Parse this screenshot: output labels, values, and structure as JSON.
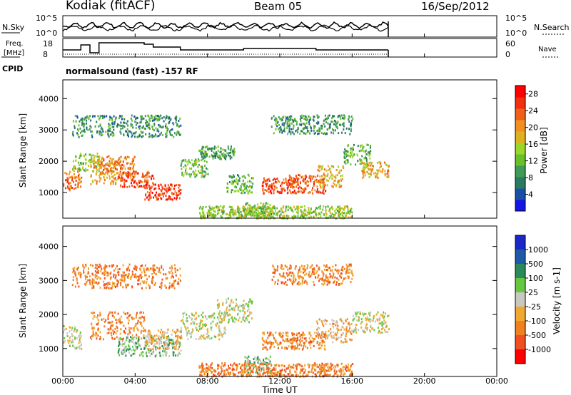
{
  "header": {
    "station": "Kodiak (fitACF)",
    "beam": "Beam 05",
    "date": "16/Sep/2012"
  },
  "left_labels": {
    "nsky": "N.Sky",
    "nsky_ticks": [
      "10^5",
      "10^0"
    ],
    "freq_line1": "Freq.",
    "freq_line2": "[MHz]",
    "freq_ticks": [
      "18",
      "8"
    ],
    "cpid": "CPID"
  },
  "right_labels": {
    "nsearch": "N.Search",
    "nsearch_ticks": [
      "10^5",
      "10^0"
    ],
    "nave": "Nave",
    "nave_ticks": [
      "60",
      "0"
    ]
  },
  "cpid_text": "normalsound (fast) -157 RF",
  "xaxis": {
    "label": "Time UT",
    "ticks": [
      "00:00",
      "04:00",
      "08:00",
      "12:00",
      "16:00",
      "20:00",
      "00:00"
    ]
  },
  "chart_data": [
    {
      "type": "heatmap",
      "name": "power",
      "ylabel": "Slant Range [km]",
      "yticks": [
        "1000",
        "2000",
        "3000",
        "4000"
      ],
      "ylim": [
        180,
        4600
      ],
      "xlim_hours": [
        0,
        24
      ],
      "data_end_hour": 18,
      "colorbar": {
        "label": "Power [dB]",
        "ticks": [
          "4",
          "8",
          "12",
          "16",
          "20",
          "24",
          "28"
        ],
        "range": [
          0,
          30
        ],
        "colors": [
          "#1515e6",
          "#1a4fa8",
          "#2a7a60",
          "#3f9a55",
          "#69c02a",
          "#9bd62a",
          "#e0b020",
          "#f09020",
          "#f06018",
          "#f03010",
          "#ff0000"
        ]
      },
      "echo_regions": [
        {
          "t": [
            0.0,
            1.0
          ],
          "r": [
            1100,
            1700
          ],
          "v": 23
        },
        {
          "t": [
            0.5,
            2.0
          ],
          "r": [
            1700,
            2300
          ],
          "v": 14
        },
        {
          "t": [
            1.5,
            3.0
          ],
          "r": [
            1300,
            2100
          ],
          "v": 20
        },
        {
          "t": [
            2.0,
            4.0
          ],
          "r": [
            1500,
            2200
          ],
          "v": 22
        },
        {
          "t": [
            3.0,
            5.0
          ],
          "r": [
            1200,
            1700
          ],
          "v": 25
        },
        {
          "t": [
            4.5,
            6.5
          ],
          "r": [
            800,
            1300
          ],
          "v": 27
        },
        {
          "t": [
            0.5,
            6.5
          ],
          "r": [
            2800,
            3500
          ],
          "v": 8
        },
        {
          "t": [
            6.5,
            8.0
          ],
          "r": [
            1500,
            2100
          ],
          "v": 12
        },
        {
          "t": [
            7.5,
            9.5
          ],
          "r": [
            2100,
            2500
          ],
          "v": 9
        },
        {
          "t": [
            9.0,
            10.5
          ],
          "r": [
            1000,
            1600
          ],
          "v": 11
        },
        {
          "t": [
            10.0,
            11.5
          ],
          "r": [
            300,
            700
          ],
          "v": 12
        },
        {
          "t": [
            11.0,
            13.0
          ],
          "r": [
            1000,
            1500
          ],
          "v": 26
        },
        {
          "t": [
            12.5,
            14.5
          ],
          "r": [
            1000,
            1600
          ],
          "v": 24
        },
        {
          "t": [
            14.0,
            15.5
          ],
          "r": [
            1200,
            1900
          ],
          "v": 18
        },
        {
          "t": [
            15.5,
            17.0
          ],
          "r": [
            1900,
            2600
          ],
          "v": 11
        },
        {
          "t": [
            16.5,
            18.0
          ],
          "r": [
            1500,
            2000
          ],
          "v": 20
        },
        {
          "t": [
            7.5,
            16.0
          ],
          "r": [
            200,
            600
          ],
          "v": 14
        },
        {
          "t": [
            11.5,
            16.0
          ],
          "r": [
            2900,
            3500
          ],
          "v": 8
        }
      ]
    },
    {
      "type": "heatmap",
      "name": "velocity",
      "ylabel": "Slant Range [km]",
      "yticks": [
        "1000",
        "2000",
        "3000",
        "4000"
      ],
      "ylim": [
        180,
        4600
      ],
      "xlim_hours": [
        0,
        24
      ],
      "data_end_hour": 18,
      "colorbar": {
        "label": "Velocity [m s-1]",
        "ticks": [
          "1000",
          "500",
          "100",
          "25",
          "-25",
          "-100",
          "-500",
          "-1000"
        ],
        "colors": [
          "#1a28c8",
          "#1e5aa8",
          "#2a8a5a",
          "#66c840",
          "#c8c8c0",
          "#f0a830",
          "#f08020",
          "#f05020",
          "#ff0000"
        ]
      },
      "echo_regions": [
        {
          "t": [
            0.0,
            1.0
          ],
          "r": [
            1000,
            1700
          ],
          "c": 4
        },
        {
          "t": [
            1.5,
            4.5
          ],
          "r": [
            1300,
            2100
          ],
          "c": 6
        },
        {
          "t": [
            3.0,
            6.5
          ],
          "r": [
            800,
            1400
          ],
          "c": 3
        },
        {
          "t": [
            4.5,
            6.5
          ],
          "r": [
            1000,
            1600
          ],
          "c": 5
        },
        {
          "t": [
            0.5,
            6.5
          ],
          "r": [
            2800,
            3500
          ],
          "c": 6
        },
        {
          "t": [
            6.5,
            9.0
          ],
          "r": [
            1300,
            2100
          ],
          "c": 4
        },
        {
          "t": [
            8.5,
            10.5
          ],
          "r": [
            1800,
            2500
          ],
          "c": 4
        },
        {
          "t": [
            10.0,
            11.5
          ],
          "r": [
            300,
            800
          ],
          "c": 3
        },
        {
          "t": [
            11.0,
            14.5
          ],
          "r": [
            1000,
            1500
          ],
          "c": 6
        },
        {
          "t": [
            14.0,
            16.0
          ],
          "r": [
            1200,
            1900
          ],
          "c": 5
        },
        {
          "t": [
            16.0,
            18.0
          ],
          "r": [
            1500,
            2100
          ],
          "c": 4
        },
        {
          "t": [
            7.5,
            16.0
          ],
          "r": [
            200,
            600
          ],
          "c": 6
        },
        {
          "t": [
            11.5,
            16.0
          ],
          "r": [
            2900,
            3500
          ],
          "c": 6
        }
      ]
    }
  ]
}
